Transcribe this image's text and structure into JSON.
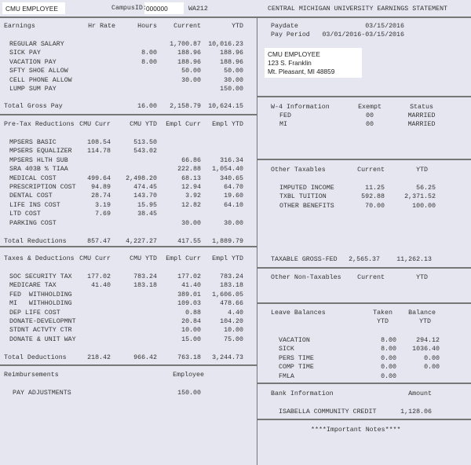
{
  "header": {
    "employee_name": "CMU EMPLOYEE",
    "campus_id_label": "CampusID:",
    "campus_id": "000000",
    "code": "WA212",
    "title": "CENTRAL MICHIGAN UNIVERSITY EARNINGS STATEMENT"
  },
  "pay_info": {
    "paydate_label": "Paydate",
    "paydate": "03/15/2016",
    "period_label": "Pay Period",
    "period": "03/01/2016-03/15/2016"
  },
  "address": [
    "CMU EMPLOYEE",
    "123 S. Franklin",
    "Mt. Pleasant, MI 48859"
  ],
  "earnings": {
    "headers": [
      "Earnings",
      "Hr Rate",
      "Hours",
      "Current",
      "YTD"
    ],
    "rows": [
      [
        "REGULAR SALARY",
        "",
        "",
        "1,700.87",
        "10,016.23"
      ],
      [
        "SICK PAY",
        "",
        "8.00",
        "188.96",
        "188.96"
      ],
      [
        "VACATION PAY",
        "",
        "8.00",
        "188.96",
        "188.96"
      ],
      [
        "SFTY SHOE ALLOW",
        "",
        "",
        "50.00",
        "50.00"
      ],
      [
        "CELL PHONE ALLOW",
        "",
        "",
        "30.00",
        "30.00"
      ],
      [
        "LUMP SUM PAY",
        "",
        "",
        "",
        "150.00"
      ]
    ],
    "total": [
      "Total Gross Pay",
      "",
      "16.00",
      "2,158.79",
      "10,624.15"
    ]
  },
  "pretax": {
    "headers": [
      "Pre-Tax Reductions",
      "CMU Curr",
      "CMU YTD",
      "Empl Curr",
      "Empl YTD"
    ],
    "rows": [
      [
        "MPSERS BASIC",
        "108.54",
        "513.50",
        "",
        ""
      ],
      [
        "MPSERS EQUALIZER",
        "114.78",
        "543.02",
        "",
        ""
      ],
      [
        "MPSERS HLTH SUB",
        "",
        "",
        "66.86",
        "316.34"
      ],
      [
        "SRA 403B % TIAA",
        "",
        "",
        "222.88",
        "1,054.40"
      ],
      [
        "MEDICAL COST",
        "499.64",
        "2,498.20",
        "68.13",
        "340.65"
      ],
      [
        "PRESCRIPTION COST",
        "94.89",
        "474.45",
        "12.94",
        "64.70"
      ],
      [
        "DENTAL COST",
        "28.74",
        "143.70",
        "3.92",
        "19.60"
      ],
      [
        "LIFE INS COST",
        "3.19",
        "15.95",
        "12.82",
        "64.10"
      ],
      [
        "LTD COST",
        "7.69",
        "38.45",
        "",
        ""
      ],
      [
        "PARKING COST",
        "",
        "",
        "30.00",
        "30.00"
      ]
    ],
    "total": [
      "Total Reductions",
      "857.47",
      "4,227.27",
      "417.55",
      "1,889.79"
    ]
  },
  "taxes": {
    "headers": [
      "Taxes & Deductions",
      "CMU Curr",
      "CMU YTD",
      "Empl Curr",
      "Empl YTD"
    ],
    "rows": [
      [
        "SOC SECURITY TAX",
        "177.02",
        "783.24",
        "177.02",
        "783.24"
      ],
      [
        "MEDICARE TAX",
        "41.40",
        "183.18",
        "41.40",
        "183.18"
      ],
      [
        "FED  WITHHOLDING",
        "",
        "",
        "389.01",
        "1,606.05"
      ],
      [
        "MI   WITHHOLDING",
        "",
        "",
        "109.03",
        "478.66"
      ],
      [
        "DEP LIFE COST",
        "",
        "",
        "0.88",
        "4.40"
      ],
      [
        "DONATE-DEVELOPMNT",
        "",
        "",
        "20.84",
        "104.20"
      ],
      [
        "STDNT ACTVTY CTR",
        "",
        "",
        "10.00",
        "10.00"
      ],
      [
        "DONATE & UNIT WAY",
        "",
        "",
        "15.00",
        "75.00"
      ]
    ],
    "total": [
      "Total Deductions",
      "218.42",
      "966.42",
      "763.18",
      "3,244.73"
    ]
  },
  "reimbursements": {
    "headers": [
      "Reimbursements",
      "Employee"
    ],
    "rows": [
      [
        "PAY ADJUSTMENTS",
        "150.00"
      ]
    ]
  },
  "w4": {
    "headers": [
      "W-4 Information",
      "Exempt",
      "Status"
    ],
    "rows": [
      [
        "FED",
        "00",
        "MARRIED"
      ],
      [
        "MI",
        "00",
        "MARRIED"
      ]
    ]
  },
  "other_taxables": {
    "headers": [
      "Other Taxables",
      "Current",
      "YTD"
    ],
    "rows": [
      [
        "IMPUTED INCOME",
        "11.25",
        "56.25"
      ],
      [
        "TXBL TUITION",
        "592.88",
        "2,371.52"
      ],
      [
        "OTHER BENEFITS",
        "70.00",
        "100.00"
      ]
    ],
    "taxable_gross": [
      "TAXABLE GROSS-FED",
      "2,565.37",
      "11,262.13"
    ]
  },
  "other_non_taxables": {
    "headers": [
      "Other Non-Taxables",
      "Current",
      "YTD"
    ]
  },
  "leave": {
    "headers": [
      "Leave Balances",
      "Taken",
      "Balance"
    ],
    "subheaders": [
      "YTD",
      "YTD"
    ],
    "rows": [
      [
        "VACATION",
        "8.00",
        "294.12"
      ],
      [
        "SICK",
        "8.00",
        "1036.40"
      ],
      [
        "PERS TIME",
        "0.00",
        "0.00"
      ],
      [
        "COMP TIME",
        "0.00",
        "0.00"
      ],
      [
        "FMLA",
        "0.00",
        ""
      ]
    ]
  },
  "bank": {
    "headers": [
      "Bank Information",
      "Amount"
    ],
    "rows": [
      [
        "ISABELLA COMMUNITY CREDIT",
        "1,128.06"
      ]
    ]
  },
  "notes": "****Important Notes****"
}
